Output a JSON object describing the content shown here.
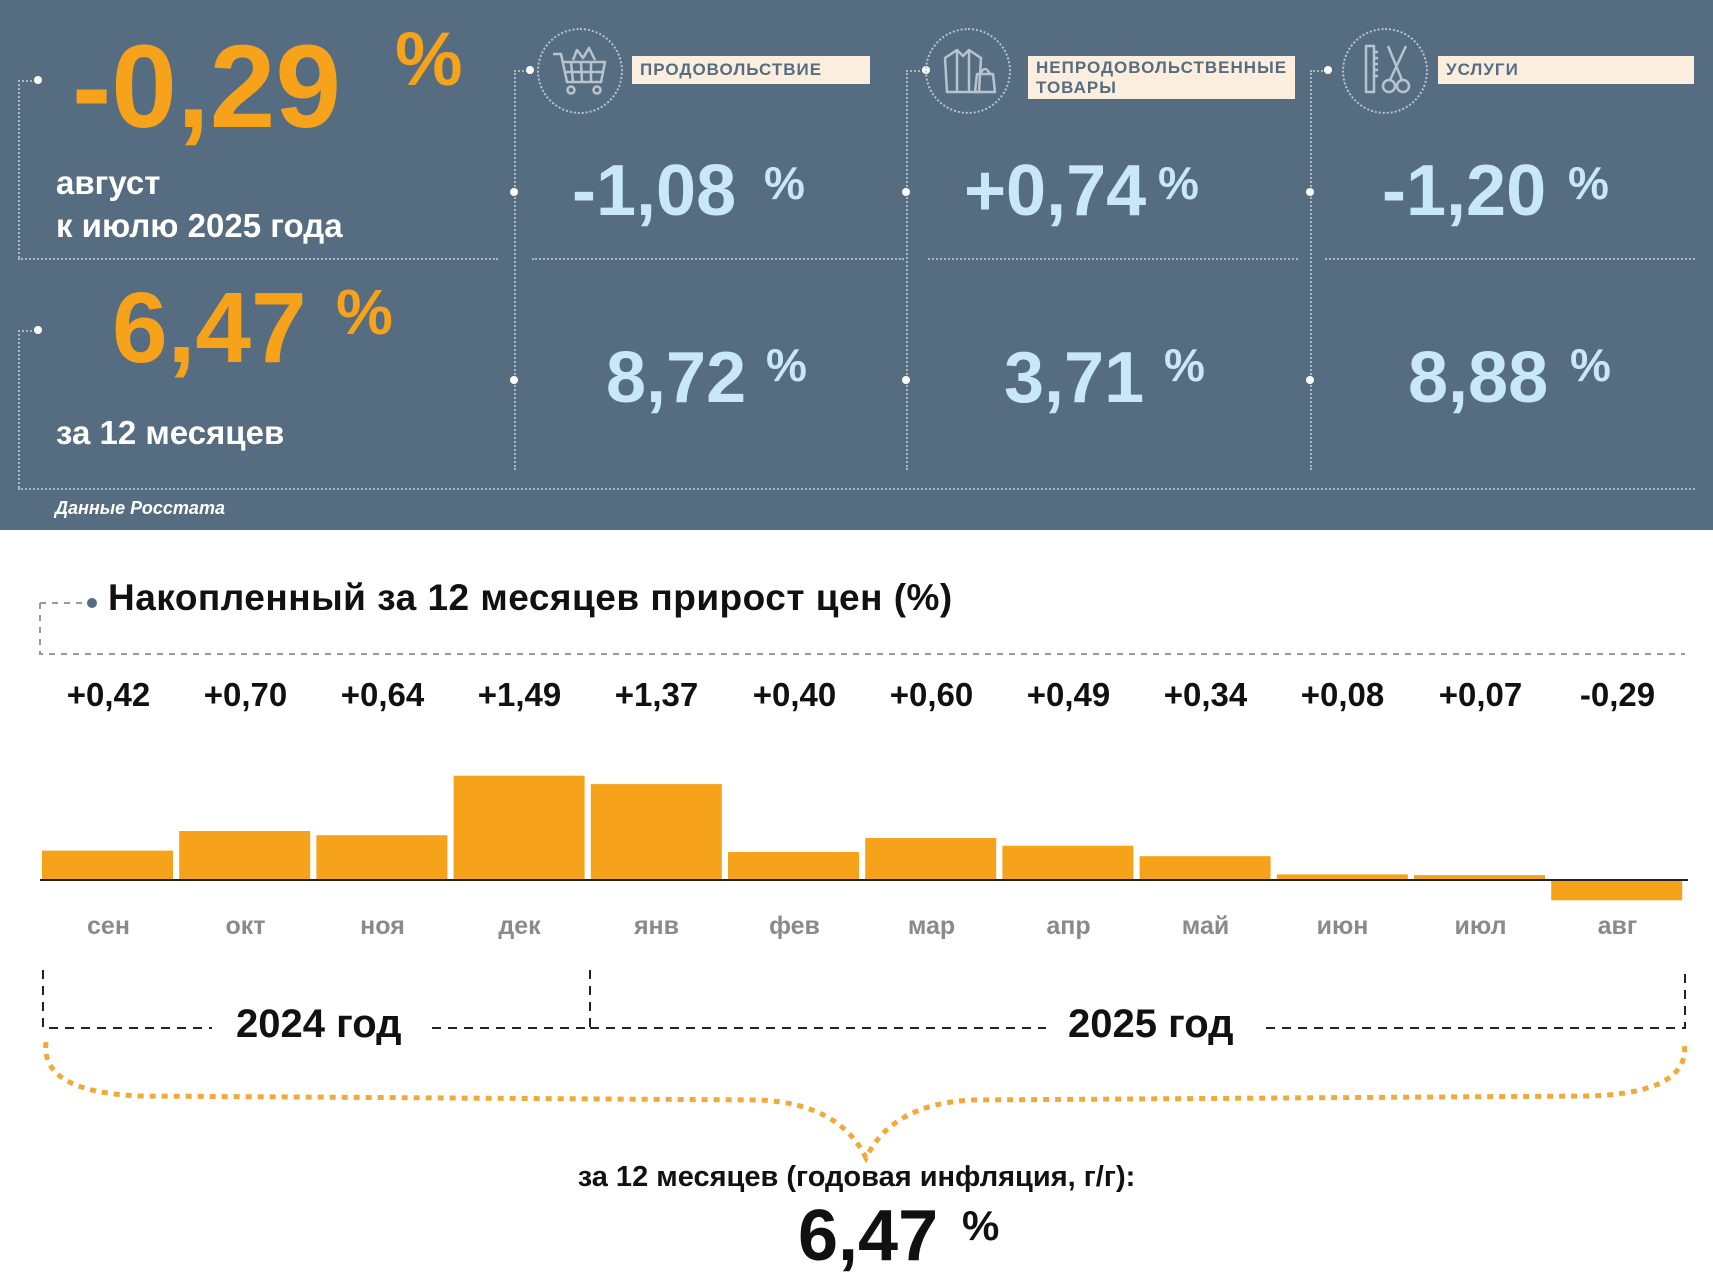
{
  "summary": {
    "monthly_value": "-0,29",
    "monthly_unit": "%",
    "monthly_caption_line1": "август",
    "monthly_caption_line2": "к июлю 2025 года",
    "annual_value": "6,47",
    "annual_unit": "%",
    "annual_caption": "за 12 месяцев",
    "source": "Данные Росстата"
  },
  "categories": [
    {
      "label": "ПРОДОВОЛЬСТВИЕ",
      "icon": "shopping-cart-icon",
      "monthly": "-1,08",
      "annual": "8,72",
      "unit": "%"
    },
    {
      "label_line1": "НЕПРОДОВОЛЬСТВЕННЫЕ",
      "label_line2": "ТОВАРЫ",
      "icon": "clothing-bag-icon",
      "monthly": "+0,74",
      "annual": "3,71",
      "unit": "%"
    },
    {
      "label": "УСЛУГИ",
      "icon": "scissors-comb-icon",
      "monthly": "-1,20",
      "annual": "8,88",
      "unit": "%"
    }
  ],
  "colors": {
    "panel": "#566c80",
    "accent_orange": "#f7a21b",
    "light_blue": "#c8e8f8",
    "label_bg": "#fbeede"
  },
  "chart_data": {
    "type": "bar",
    "title": "Накопленный за 12 месяцев прирост цен (%)",
    "categories": [
      "сен",
      "окт",
      "ноя",
      "дек",
      "янв",
      "фев",
      "мар",
      "апр",
      "май",
      "июн",
      "июл",
      "авг"
    ],
    "values": [
      0.42,
      0.7,
      0.64,
      1.49,
      1.37,
      0.4,
      0.6,
      0.49,
      0.34,
      0.08,
      0.07,
      -0.29
    ],
    "value_labels": [
      "+0,42",
      "+0,70",
      "+0,64",
      "+1,49",
      "+1,37",
      "+0,40",
      "+0,60",
      "+0,49",
      "+0,34",
      "+0,08",
      "+0,07",
      "-0,29"
    ],
    "year_groups": [
      "2024 год",
      "2025 год"
    ],
    "total_caption": "за 12 месяцев (годовая инфляция, г/г):",
    "total_value": "6,47",
    "total_unit": "%"
  }
}
